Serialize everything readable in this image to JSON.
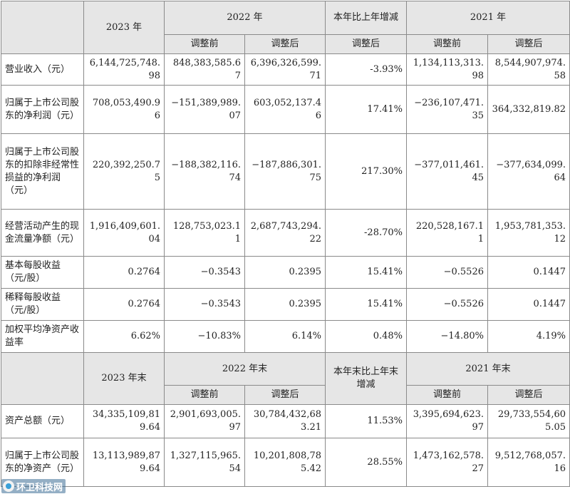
{
  "header1": {
    "y2023": "2023 年",
    "y2022": "2022 年",
    "change": "本年比上年增减",
    "y2021": "2021 年",
    "before": "调整前",
    "after": "调整后",
    "change_after": "调整后"
  },
  "rows1": [
    {
      "label": "营业收入（元）",
      "v2023": "6,144,725,748.98",
      "v2022_before": "848,383,585.67",
      "v2022_after": "6,396,326,599.71",
      "change": "-3.93%",
      "v2021_before": "1,134,113,313.98",
      "v2021_after": "8,544,907,974.58"
    },
    {
      "label": "归属于上市公司股东的净利润（元）",
      "v2023": "708,053,490.96",
      "v2022_before": "−151,389,989.07",
      "v2022_after": "603,052,137.46",
      "change": "17.41%",
      "v2021_before": "−236,107,471.35",
      "v2021_after": "364,332,819.82"
    },
    {
      "label": "归属于上市公司股东的扣除非经常性损益的净利润（元）",
      "v2023": "220,392,250.75",
      "v2022_before": "−188,382,116.74",
      "v2022_after": "−187,886,301.75",
      "change": "217.30%",
      "v2021_before": "−377,011,461.45",
      "v2021_after": "−377,634,099.64"
    },
    {
      "label": "经营活动产生的现金流量净额（元）",
      "v2023": "1,916,409,601.04",
      "v2022_before": "128,753,023.11",
      "v2022_after": "2,687,743,294.22",
      "change": "-28.70%",
      "v2021_before": "220,528,167.11",
      "v2021_after": "1,953,781,353.12"
    },
    {
      "label": "基本每股收益（元/股）",
      "v2023": "0.2764",
      "v2022_before": "−0.3543",
      "v2022_after": "0.2395",
      "change": "15.41%",
      "v2021_before": "−0.5526",
      "v2021_after": "0.1447"
    },
    {
      "label": "稀释每股收益（元/股）",
      "v2023": "0.2764",
      "v2022_before": "−0.3543",
      "v2022_after": "0.2395",
      "change": "15.41%",
      "v2021_before": "−0.5526",
      "v2021_after": "0.1447"
    },
    {
      "label": "加权平均净资产收益率",
      "v2023": "6.62%",
      "v2022_before": "−10.83%",
      "v2022_after": "6.14%",
      "change": "0.48%",
      "v2021_before": "−14.80%",
      "v2021_after": "4.19%"
    }
  ],
  "header2": {
    "y2023": "2023 年末",
    "y2022": "2022 年末",
    "change": "本年末比上年末增减",
    "y2021": "2021 年末",
    "before": "调整前",
    "after": "调整后"
  },
  "rows2": [
    {
      "label": "资产总额（元）",
      "v2023": "34,335,109,819.64",
      "v2022_before": "2,901,693,005.97",
      "v2022_after": "30,784,432,683.21",
      "change": "11.53%",
      "v2021_before": "3,395,694,623.97",
      "v2021_after": "29,733,554,605.05"
    },
    {
      "label": "归属于上市公司股东的净资产（元）",
      "v2023": "13,113,989,879.64",
      "v2022_before": "1,327,115,965.54",
      "v2022_after": "10,201,808,785.42",
      "change": "28.55%",
      "v2021_before": "1,473,162,578.27",
      "v2021_after": "9,512,768,057.16"
    }
  ],
  "watermark": "环卫科技网"
}
